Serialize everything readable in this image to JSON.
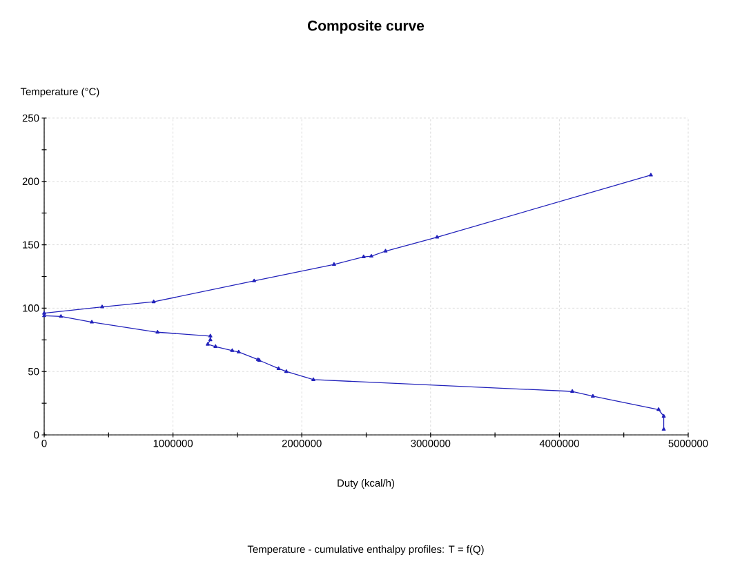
{
  "chart_data": {
    "type": "line",
    "title": "Composite curve",
    "xlabel": "Duty (kcal/h)",
    "ylabel": "Temperature (°C)",
    "annotations": [
      "Temperature - cumulative enthalpy profiles: T = f(Q)"
    ],
    "xlim": [
      0,
      5000000
    ],
    "ylim": [
      0,
      250
    ],
    "xticks": [
      0,
      1000000,
      2000000,
      3000000,
      4000000,
      5000000
    ],
    "yticks": [
      0,
      50,
      100,
      150,
      200,
      250
    ],
    "grid": true,
    "marker": "triangle",
    "line_style": "solid",
    "series": [
      {
        "color": "#2222bb",
        "x": [
          0,
          450000,
          850000,
          1630000,
          2250000,
          2480000,
          2540000,
          2650000,
          3050000,
          4710000
        ],
        "values": [
          96,
          101,
          105,
          121.5,
          134.5,
          140.5,
          141,
          145,
          156,
          205
        ]
      },
      {
        "color": "#2222bb",
        "x": [
          0,
          130000,
          370000,
          880000,
          1290000,
          1290000,
          1270000,
          1330000,
          1460000,
          1510000,
          1660000,
          1670000,
          1820000,
          1880000,
          2090000,
          4100000,
          4260000,
          4770000,
          4810000,
          4810000
        ],
        "values": [
          94,
          93.5,
          89,
          81,
          78,
          75,
          71.5,
          69.7,
          66.5,
          65.4,
          59.4,
          58.8,
          52.3,
          50,
          43.6,
          34.3,
          30.5,
          20,
          14.7,
          4.4
        ]
      }
    ]
  }
}
